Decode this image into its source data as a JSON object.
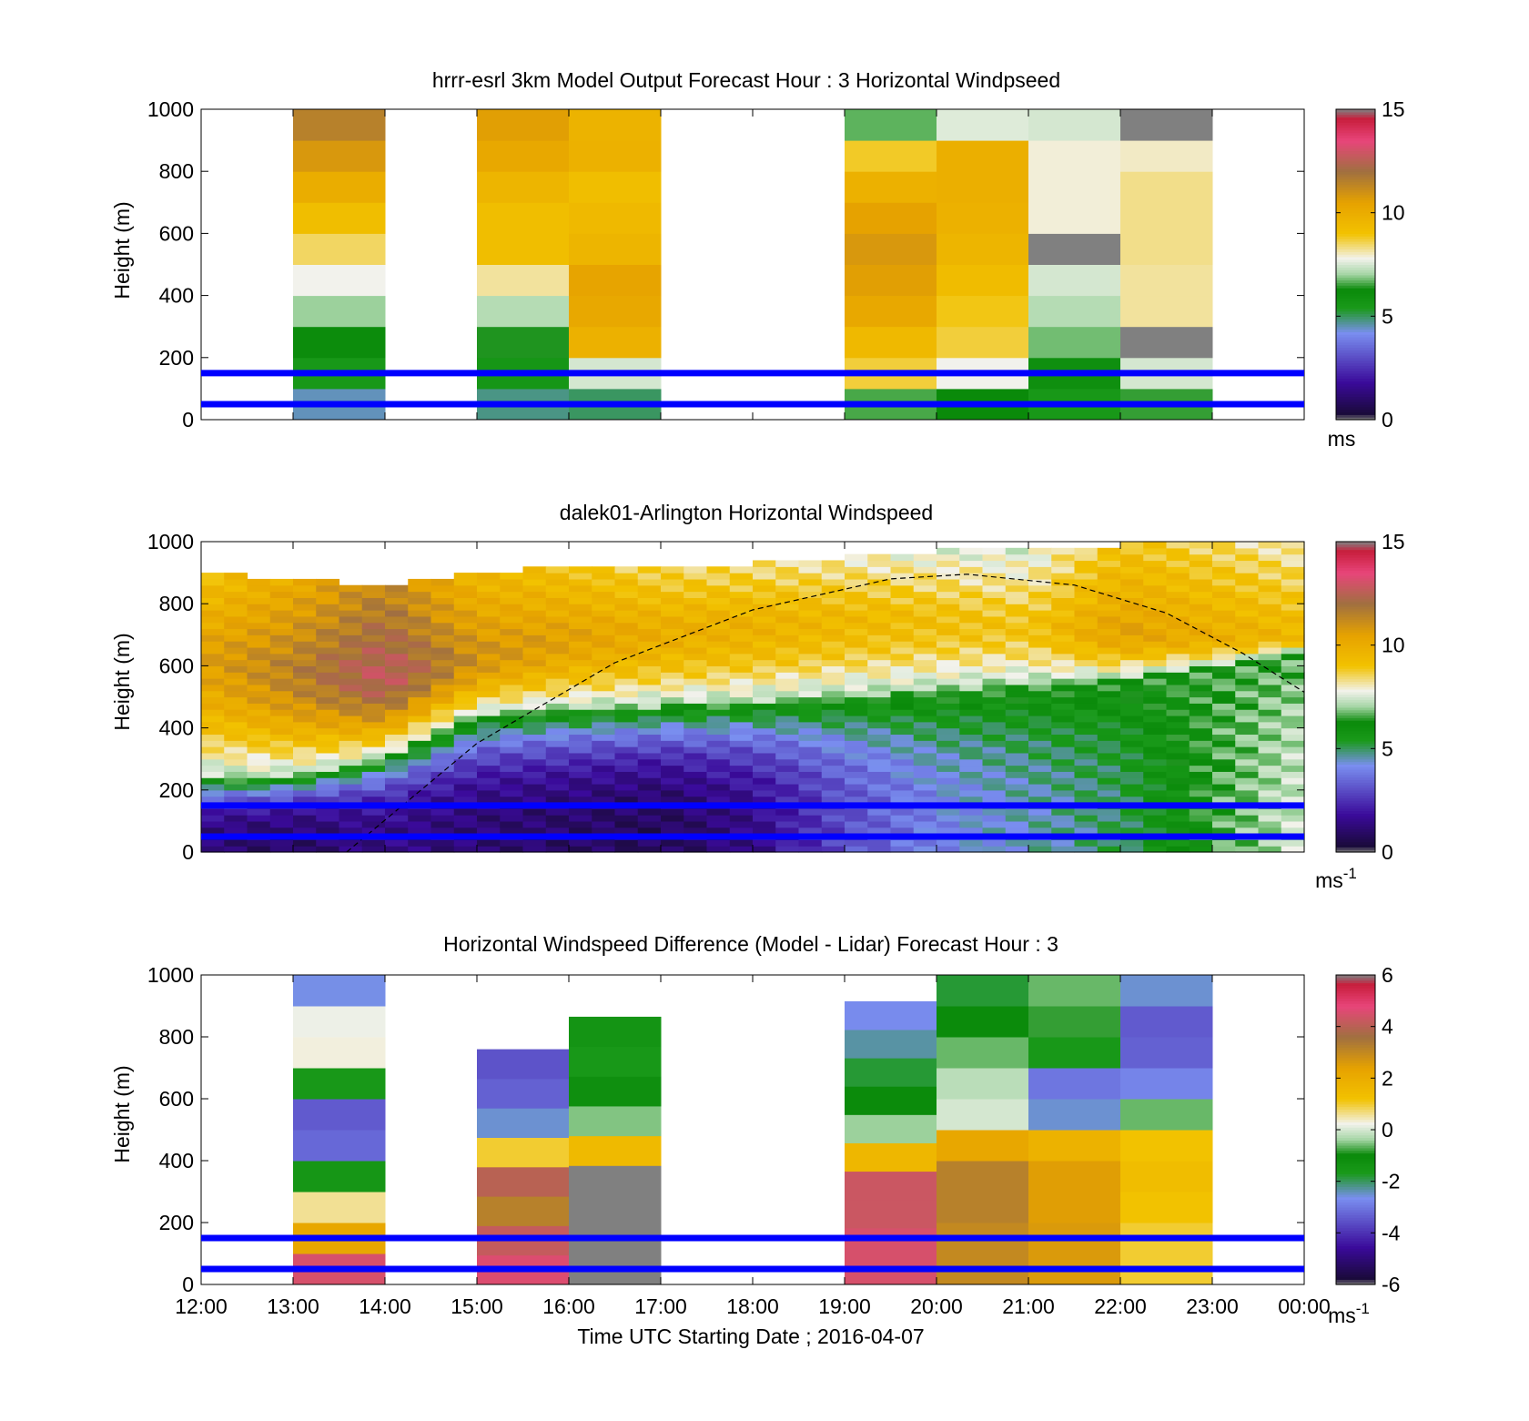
{
  "figure": {
    "xlabel": "Time UTC  Starting Date ; 2016-04-07",
    "x_tick_labels": [
      "12:00",
      "13:00",
      "14:00",
      "15:00",
      "16:00",
      "17:00",
      "18:00",
      "19:00",
      "20:00",
      "21:00",
      "22:00",
      "23:00",
      "00:00"
    ]
  },
  "colors": {
    "reference_lines": "#0000ff",
    "colormap_stops": [
      "#808080",
      "#1a0a3a",
      "#3a0a9a",
      "#7a8ff0",
      "#1a9a1a",
      "#0a8a0a",
      "#a6d6a6",
      "#f2f2ec",
      "#f2c200",
      "#e6a200",
      "#a07040",
      "#e8457a",
      "#c81e3c",
      "#808080"
    ]
  },
  "chart_data": [
    {
      "type": "heatmap",
      "title": "hrrr-esrl 3km Model Output   Forecast Hour : 3 Horizontal Windpseed",
      "ylabel": "Height (m)",
      "xlim": [
        "12:00",
        "00:00"
      ],
      "ylim": [
        0,
        1000
      ],
      "y_ticks": [
        0,
        200,
        400,
        600,
        800,
        1000
      ],
      "reference_lines_height_m": [
        50,
        150
      ],
      "colorbar": {
        "min": 0,
        "max": 15,
        "ticks": [
          0,
          5,
          10,
          15
        ],
        "unit": "ms"
      },
      "columns": [
        {
          "start": "13:00",
          "end": "14:00",
          "values": [
            4.5,
            5.5,
            6.2,
            7,
            7.8,
            8.5,
            9.2,
            10,
            10.8,
            11.5
          ]
        },
        {
          "start": "15:00",
          "end": "16:00",
          "values": [
            4.8,
            5.6,
            6.4,
            7.2,
            8.2,
            9.2,
            9.2,
            9.6,
            10.2,
            10.6
          ]
        },
        {
          "start": "16:00",
          "end": "17:00",
          "values": [
            5.0,
            7.5,
            9.8,
            10.2,
            10.4,
            9.6,
            9.4,
            9.2,
            9.8,
            9.7
          ]
        },
        {
          "start": "19:00",
          "end": "20:00",
          "values": [
            6.6,
            8.7,
            9.4,
            10.2,
            10.6,
            10.8,
            10.5,
            9.8,
            8.8,
            6.7
          ]
        },
        {
          "start": "20:00",
          "end": "21:00",
          "values": [
            6.3,
            7.8,
            8.7,
            8.9,
            9.3,
            9.6,
            9.8,
            9.9,
            9.9,
            7.6
          ]
        },
        {
          "start": "21:00",
          "end": "22:00",
          "values": [
            5.5,
            6.0,
            6.8,
            7.2,
            7.5,
            15.0,
            7.9,
            7.9,
            7.9,
            7.5
          ]
        },
        {
          "start": "22:00",
          "end": "23:00",
          "values": [
            6.5,
            7.5,
            15.0,
            8.2,
            8.2,
            8.3,
            8.3,
            8.3,
            8.0,
            15.0
          ]
        }
      ]
    },
    {
      "type": "heatmap",
      "title": "dalek01-Arlington  Horizontal Windspeed",
      "ylabel": "Height (m)",
      "xlim": [
        "12:00",
        "00:00"
      ],
      "ylim": [
        0,
        1000
      ],
      "y_ticks": [
        0,
        200,
        400,
        600,
        800,
        1000
      ],
      "reference_lines_height_m": [
        50,
        150
      ],
      "colorbar": {
        "min": 0,
        "max": 15,
        "ticks": [
          0,
          5,
          10,
          15
        ],
        "unit": "ms",
        "unit_exponent": "-1"
      },
      "profiles": [
        {
          "time": "12:00",
          "low_speed": 1.2,
          "jet_speed": 10.5,
          "jet_height": 650,
          "transition_height": 230,
          "top_height": 900
        },
        {
          "time": "13:00",
          "low_speed": 1.0,
          "jet_speed": 11.5,
          "jet_height": 600,
          "transition_height": 240,
          "top_height": 880
        },
        {
          "time": "14:00",
          "low_speed": 1.5,
          "jet_speed": 12.8,
          "jet_height": 580,
          "transition_height": 300,
          "top_height": 860
        },
        {
          "time": "15:00",
          "low_speed": 1.2,
          "jet_speed": 11.0,
          "jet_height": 640,
          "transition_height": 440,
          "top_height": 900
        },
        {
          "time": "16:00",
          "low_speed": 1.0,
          "jet_speed": 10.5,
          "jet_height": 700,
          "transition_height": 460,
          "top_height": 920
        },
        {
          "time": "17:00",
          "low_speed": 0.8,
          "jet_speed": 10.0,
          "jet_height": 720,
          "transition_height": 470,
          "top_height": 920
        },
        {
          "time": "18:00",
          "low_speed": 1.5,
          "jet_speed": 9.8,
          "jet_height": 740,
          "transition_height": 480,
          "top_height": 930
        },
        {
          "time": "19:00",
          "low_speed": 3.0,
          "jet_speed": 9.5,
          "jet_height": 760,
          "transition_height": 500,
          "top_height": 950
        },
        {
          "time": "20:00",
          "low_speed": 4.0,
          "jet_speed": 9.2,
          "jet_height": 760,
          "transition_height": 520,
          "top_height": 970
        },
        {
          "time": "21:00",
          "low_speed": 4.5,
          "jet_speed": 9.0,
          "jet_height": 740,
          "transition_height": 540,
          "top_height": 980
        },
        {
          "time": "22:00",
          "low_speed": 5.0,
          "jet_speed": 10.5,
          "jet_height": 720,
          "transition_height": 560,
          "top_height": 990
        },
        {
          "time": "23:00",
          "low_speed": 6.5,
          "jet_speed": 10.0,
          "jet_height": 700,
          "transition_height": 600,
          "top_height": 990
        },
        {
          "time": "00:00",
          "low_speed": 7.5,
          "jet_speed": 9.5,
          "jet_height": 700,
          "transition_height": 650,
          "top_height": 990
        }
      ],
      "dashed_curve_points": [
        {
          "time": "13:35",
          "height_m": 0
        },
        {
          "time": "15:00",
          "height_m": 350
        },
        {
          "time": "16:30",
          "height_m": 610
        },
        {
          "time": "18:00",
          "height_m": 780
        },
        {
          "time": "19:30",
          "height_m": 880
        },
        {
          "time": "20:20",
          "height_m": 895
        },
        {
          "time": "21:30",
          "height_m": 860
        },
        {
          "time": "22:30",
          "height_m": 770
        },
        {
          "time": "23:20",
          "height_m": 640
        },
        {
          "time": "00:00",
          "height_m": 515
        }
      ]
    },
    {
      "type": "heatmap",
      "title": "Horizontal Windspeed Difference (Model - Lidar) Forecast Hour : 3",
      "ylabel": "Height (m)",
      "xlim": [
        "12:00",
        "00:00"
      ],
      "ylim": [
        0,
        1000
      ],
      "y_ticks": [
        0,
        200,
        400,
        600,
        800,
        1000
      ],
      "reference_lines_height_m": [
        50,
        150
      ],
      "colorbar": {
        "min": -6,
        "max": 6,
        "ticks": [
          -6,
          -4,
          -2,
          0,
          2,
          4,
          6
        ],
        "unit": "ms",
        "unit_exponent": "-1"
      },
      "columns": [
        {
          "start": "13:00",
          "end": "14:00",
          "top_height": 1000,
          "values": [
            4.5,
            2.2,
            0.6,
            -1.5,
            -3.2,
            -3.4,
            -1.6,
            0.3,
            0.2,
            -2.6
          ],
          "gap": [
            730,
            790
          ]
        },
        {
          "start": "15:00",
          "end": "16:00",
          "top_height": 760,
          "values": [
            4.6,
            4.2,
            3.2,
            4.0,
            1.0,
            -2.5,
            -3.3,
            -3.5
          ]
        },
        {
          "start": "16:00",
          "end": "17:00",
          "top_height": 865,
          "values": [
            6.0,
            6.0,
            6.0,
            6.0,
            1.5,
            -0.5,
            -1.2,
            -1.6,
            -1.4
          ]
        },
        {
          "start": "19:00",
          "end": "20:00",
          "top_height": 915,
          "values": [
            4.5,
            4.5,
            4.3,
            4.3,
            1.6,
            -0.4,
            -1.0,
            -1.8,
            -2.3,
            -2.7
          ]
        },
        {
          "start": "20:00",
          "end": "21:00",
          "top_height": 1000,
          "values": [
            3.0,
            3.0,
            3.2,
            3.2,
            2.2,
            0.0,
            -0.2,
            -0.6,
            -1.0,
            -1.8
          ]
        },
        {
          "start": "21:00",
          "end": "22:00",
          "top_height": 1000,
          "values": [
            2.6,
            2.6,
            2.5,
            2.5,
            1.8,
            -2.5,
            -3.0,
            -1.6,
            -0.8,
            -0.6
          ]
        },
        {
          "start": "22:00",
          "end": "23:00",
          "top_height": 1000,
          "values": [
            1.0,
            1.0,
            1.2,
            1.4,
            1.2,
            -0.6,
            -2.8,
            -3.3,
            -3.4,
            -2.5
          ]
        }
      ]
    }
  ]
}
